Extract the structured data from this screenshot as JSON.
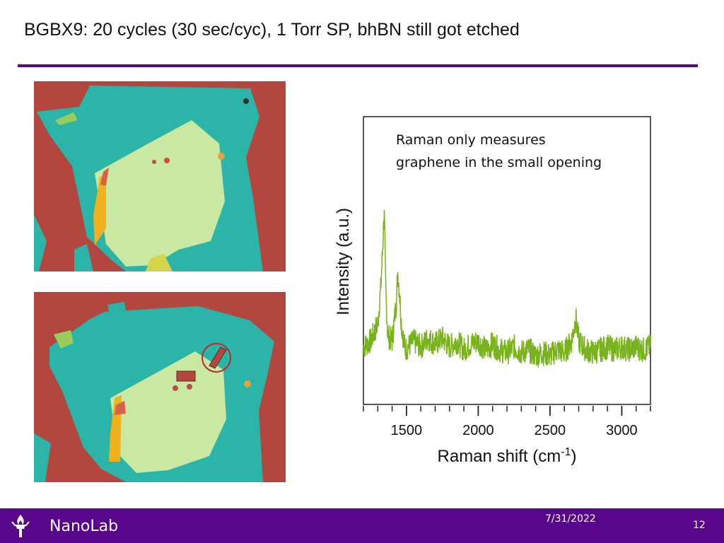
{
  "slide": {
    "title": "BGBX9: 20 cycles (30 sec/cyc), 1 Torr SP, bhBN still got etched",
    "accent_color": "#57068c"
  },
  "images": {
    "top": {
      "alt": "optical micrograph of flake before etch"
    },
    "bottom": {
      "alt": "optical micrograph of flake after etch with circled opening"
    }
  },
  "chart_data": {
    "type": "line",
    "annotation": "Raman only measures\ngraphene in the small opening",
    "xlabel": "Raman shift (cm-1)",
    "ylabel": "Intensity (a.u.)",
    "xlim": [
      1200,
      3200
    ],
    "x_ticks": [
      1500,
      2000,
      2500,
      3000
    ],
    "x_minor_ticks": [
      1200,
      1300,
      1400,
      1500,
      1600,
      1700,
      1800,
      1900,
      2000,
      2100,
      2200,
      2300,
      2400,
      2500,
      2600,
      2700,
      2800,
      2900,
      3000,
      3100,
      3200
    ],
    "ylim": [
      0,
      1
    ],
    "series": [
      {
        "color": "#78b21c",
        "points": [
          [
            1200,
            0.2
          ],
          [
            1250,
            0.22
          ],
          [
            1300,
            0.28
          ],
          [
            1320,
            0.4
          ],
          [
            1335,
            0.55
          ],
          [
            1345,
            0.68
          ],
          [
            1355,
            0.4
          ],
          [
            1370,
            0.24
          ],
          [
            1400,
            0.22
          ],
          [
            1430,
            0.36
          ],
          [
            1440,
            0.46
          ],
          [
            1450,
            0.4
          ],
          [
            1465,
            0.28
          ],
          [
            1490,
            0.19
          ],
          [
            1550,
            0.22
          ],
          [
            1600,
            0.2
          ],
          [
            1650,
            0.23
          ],
          [
            1700,
            0.21
          ],
          [
            1750,
            0.23
          ],
          [
            1800,
            0.2
          ],
          [
            1850,
            0.22
          ],
          [
            1900,
            0.19
          ],
          [
            1950,
            0.21
          ],
          [
            2000,
            0.22
          ],
          [
            2050,
            0.19
          ],
          [
            2100,
            0.21
          ],
          [
            2150,
            0.19
          ],
          [
            2200,
            0.18
          ],
          [
            2250,
            0.2
          ],
          [
            2300,
            0.18
          ],
          [
            2350,
            0.19
          ],
          [
            2400,
            0.17
          ],
          [
            2450,
            0.18
          ],
          [
            2500,
            0.17
          ],
          [
            2550,
            0.19
          ],
          [
            2600,
            0.18
          ],
          [
            2650,
            0.22
          ],
          [
            2680,
            0.3
          ],
          [
            2700,
            0.22
          ],
          [
            2750,
            0.19
          ],
          [
            2800,
            0.18
          ],
          [
            2850,
            0.19
          ],
          [
            2900,
            0.2
          ],
          [
            2950,
            0.19
          ],
          [
            3000,
            0.2
          ],
          [
            3050,
            0.19
          ],
          [
            3100,
            0.2
          ],
          [
            3150,
            0.19
          ],
          [
            3200,
            0.2
          ]
        ]
      }
    ]
  },
  "footer": {
    "brand": "NanoLab",
    "date": "7/31/2022",
    "page": "12"
  }
}
